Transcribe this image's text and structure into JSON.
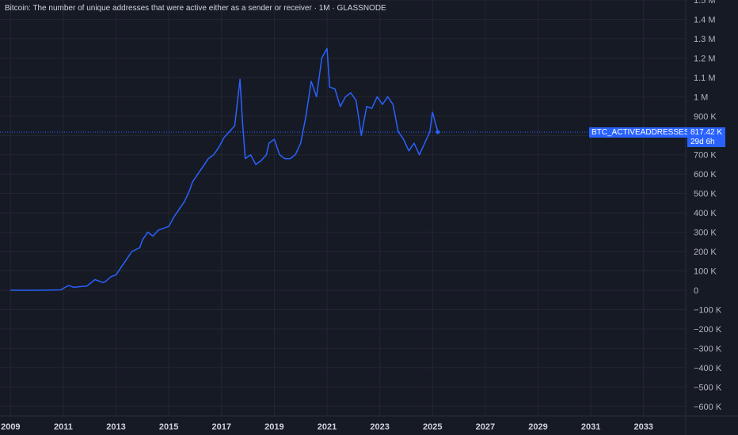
{
  "header": {
    "title": "Bitcoin: The number of unique addresses that were active either as a sender or receiver · 1M · GLASSNODE"
  },
  "last_value": {
    "series_label": "BTC_ACTIVEADDRESSES",
    "value": "817.42 K",
    "countdown": "29d 6h"
  },
  "colors": {
    "background": "#161a25",
    "grid": "#242733",
    "line": "#2962ff",
    "text": "#b2b5be"
  },
  "chart_data": {
    "type": "line",
    "title": "Bitcoin: The number of unique addresses that were active either as a sender or receiver · 1M · GLASSNODE",
    "xlabel": "",
    "ylabel": "",
    "xlim": [
      2008.6,
      2034.6
    ],
    "ylim": [
      -650000,
      1500000
    ],
    "x_ticks": [
      "2009",
      "2011",
      "2013",
      "2015",
      "2017",
      "2019",
      "2021",
      "2023",
      "2025",
      "2027",
      "2029",
      "2031",
      "2033"
    ],
    "y_ticks": [
      "1.5 M",
      "1.4 M",
      "1.3 M",
      "1.2 M",
      "1.1 M",
      "1 M",
      "900 K",
      "800 K",
      "700 K",
      "600 K",
      "500 K",
      "400 K",
      "300 K",
      "200 K",
      "100 K",
      "0",
      "−100 K",
      "−200 K",
      "−300 K",
      "−400 K",
      "−500 K",
      "−600 K"
    ],
    "y_tick_values": [
      1500000,
      1400000,
      1300000,
      1200000,
      1100000,
      1000000,
      900000,
      800000,
      700000,
      600000,
      500000,
      400000,
      300000,
      200000,
      100000,
      0,
      -100000,
      -200000,
      -300000,
      -400000,
      -500000,
      -600000
    ],
    "grid": true,
    "series": [
      {
        "x": [
          2009.0,
          2010.0,
          2010.9,
          2011.2,
          2011.4,
          2011.6,
          2011.9,
          2012.2,
          2012.5,
          2012.6,
          2012.8,
          2013.0,
          2013.2,
          2013.4,
          2013.6,
          2013.9,
          2014.0,
          2014.2,
          2014.4,
          2014.6,
          2014.8,
          2015.0,
          2015.2,
          2015.4,
          2015.6,
          2015.8,
          2015.9,
          2016.1,
          2016.3,
          2016.5,
          2016.7,
          2016.9,
          2017.1,
          2017.3,
          2017.5,
          2017.7,
          2017.8,
          2017.9,
          2018.1,
          2018.3,
          2018.5,
          2018.7,
          2018.8,
          2019.0,
          2019.2,
          2019.4,
          2019.6,
          2019.8,
          2020.0,
          2020.2,
          2020.4,
          2020.6,
          2020.8,
          2021.0,
          2021.1,
          2021.3,
          2021.5,
          2021.7,
          2021.9,
          2022.1,
          2022.3,
          2022.5,
          2022.7,
          2022.9,
          2023.1,
          2023.3,
          2023.5,
          2023.7,
          2023.9,
          2024.1,
          2024.3,
          2024.5,
          2024.7,
          2024.9,
          2025.0,
          2025.2
        ],
        "y": [
          0,
          0,
          2000,
          25000,
          15000,
          18000,
          22000,
          55000,
          40000,
          45000,
          70000,
          80000,
          120000,
          160000,
          200000,
          220000,
          260000,
          300000,
          280000,
          310000,
          320000,
          330000,
          380000,
          420000,
          460000,
          520000,
          560000,
          600000,
          640000,
          680000,
          700000,
          740000,
          790000,
          820000,
          850000,
          1090000,
          860000,
          680000,
          700000,
          650000,
          670000,
          700000,
          760000,
          780000,
          700000,
          680000,
          680000,
          700000,
          760000,
          900000,
          1080000,
          1000000,
          1200000,
          1250000,
          1050000,
          1040000,
          950000,
          1000000,
          1020000,
          980000,
          800000,
          950000,
          940000,
          1000000,
          960000,
          1000000,
          960000,
          820000,
          780000,
          720000,
          760000,
          700000,
          760000,
          820000,
          920000,
          817420
        ]
      }
    ]
  }
}
